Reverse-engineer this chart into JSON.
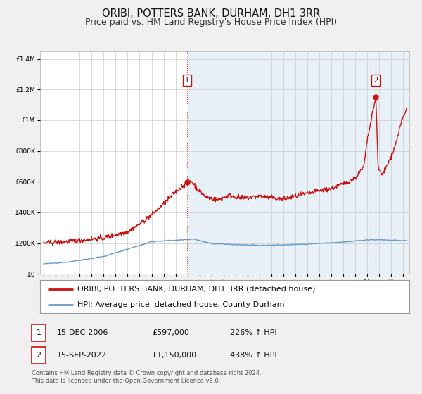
{
  "title": "ORIBI, POTTERS BANK, DURHAM, DH1 3RR",
  "subtitle": "Price paid vs. HM Land Registry's House Price Index (HPI)",
  "ylim": [
    0,
    1450000
  ],
  "xlim_start": 1994.7,
  "xlim_end": 2025.5,
  "background_color": "#f0f0f0",
  "plot_bg_color": "#ffffff",
  "plot_bg_right_color": "#ddeeff",
  "grid_color": "#cccccc",
  "hpi_color": "#6699cc",
  "price_color": "#cc1111",
  "marker1_date": 2006.96,
  "marker1_price": 597000,
  "marker1_label": "1",
  "marker2_date": 2022.71,
  "marker2_price": 1150000,
  "marker2_label": "2",
  "legend_label1": "ORIBI, POTTERS BANK, DURHAM, DH1 3RR (detached house)",
  "legend_label2": "HPI: Average price, detached house, County Durham",
  "table_row1": [
    "1",
    "15-DEC-2006",
    "£597,000",
    "226% ↑ HPI"
  ],
  "table_row2": [
    "2",
    "15-SEP-2022",
    "£1,150,000",
    "438% ↑ HPI"
  ],
  "footer1": "Contains HM Land Registry data © Crown copyright and database right 2024.",
  "footer2": "This data is licensed under the Open Government Licence v3.0.",
  "title_fontsize": 10.5,
  "subtitle_fontsize": 9,
  "tick_fontsize": 6.5,
  "legend_fontsize": 8,
  "table_fontsize": 8,
  "footer_fontsize": 6
}
